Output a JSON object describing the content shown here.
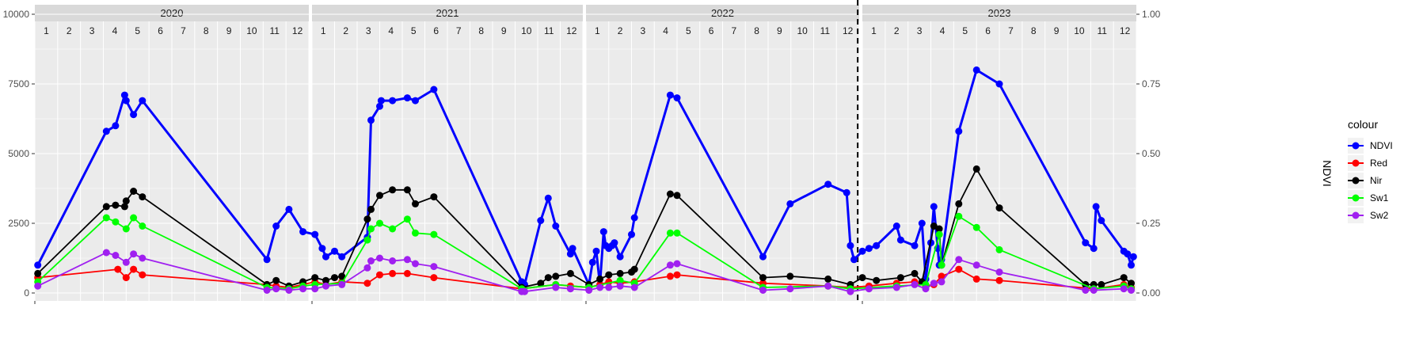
{
  "chart_data": {
    "type": "line",
    "title": "",
    "xlabel": "",
    "ylabel": "",
    "ylabel_right": "NDVI",
    "ylim": [
      0,
      10000
    ],
    "ylim_right": [
      0,
      1
    ],
    "y_ticks": [
      "0",
      "2500",
      "5000",
      "7500",
      "10000"
    ],
    "y_ticks_right": [
      "0.00",
      "0.25",
      "0.50",
      "0.75",
      "1.00"
    ],
    "x_range": [
      "2020-01-01",
      "2023-12-31"
    ],
    "grid": true,
    "legend": {
      "title": "colour",
      "position": "right"
    },
    "years": [
      "2020",
      "2021",
      "2022",
      "2023"
    ],
    "month_labels": [
      "1",
      "2",
      "3",
      "4",
      "5",
      "6",
      "7",
      "8",
      "9",
      "10",
      "11",
      "12"
    ],
    "vline_date": "2022-12-30",
    "series": [
      {
        "name": "NDVI",
        "color": "#0000ff",
        "x": [
          "2020-01-05",
          "2020-04-05",
          "2020-04-17",
          "2020-04-29",
          "2020-05-01",
          "2020-05-11",
          "2020-05-23",
          "2020-11-06",
          "2020-11-18",
          "2020-12-05",
          "2020-12-24",
          "2021-01-05",
          "2021-01-15",
          "2021-01-20",
          "2021-02-01",
          "2021-02-10",
          "2021-03-15",
          "2021-03-20",
          "2021-04-01",
          "2021-04-03",
          "2021-04-18",
          "2021-05-08",
          "2021-05-19",
          "2021-06-13",
          "2021-10-10",
          "2021-10-14",
          "2021-11-05",
          "2021-11-15",
          "2021-11-25",
          "2021-12-15",
          "2021-12-18",
          "2022-01-05",
          "2022-01-10",
          "2022-01-15",
          "2022-01-20",
          "2022-01-25",
          "2022-01-28",
          "2022-02-01",
          "2022-02-05",
          "2022-02-08",
          "2022-02-15",
          "2022-03-01",
          "2022-03-05",
          "2022-04-22",
          "2022-05-01",
          "2022-08-25",
          "2022-09-30",
          "2022-11-20",
          "2022-12-15",
          "2022-12-20",
          "2022-12-25",
          "2023-01-01",
          "2023-01-10",
          "2023-01-20",
          "2023-02-15",
          "2023-02-20",
          "2023-03-10",
          "2023-03-20",
          "2023-03-25",
          "2023-04-01",
          "2023-04-05",
          "2023-04-10",
          "2023-04-12",
          "2023-04-15",
          "2023-05-08",
          "2023-06-01",
          "2023-07-01",
          "2023-10-25",
          "2023-11-05",
          "2023-11-08",
          "2023-11-15",
          "2023-12-15",
          "2023-12-20",
          "2023-12-25",
          "2023-12-28"
        ],
        "values": [
          0.1,
          0.58,
          0.6,
          0.71,
          0.69,
          0.64,
          0.69,
          0.12,
          0.24,
          0.3,
          0.22,
          0.21,
          0.16,
          0.13,
          0.15,
          0.13,
          0.2,
          0.62,
          0.67,
          0.69,
          0.69,
          0.7,
          0.69,
          0.73,
          0.04,
          0.03,
          0.26,
          0.34,
          0.24,
          0.14,
          0.16,
          0.03,
          0.11,
          0.15,
          0.03,
          0.22,
          0.17,
          0.16,
          0.17,
          0.18,
          0.13,
          0.21,
          0.27,
          0.71,
          0.7,
          0.13,
          0.32,
          0.39,
          0.36,
          0.17,
          0.12,
          0.15,
          0.16,
          0.17,
          0.24,
          0.19,
          0.17,
          0.25,
          0.05,
          0.18,
          0.31,
          0.16,
          0.1,
          0.12,
          0.58,
          0.8,
          0.75,
          0.18,
          0.16,
          0.31,
          0.26,
          0.15,
          0.14,
          0.1,
          0.13
        ]
      },
      {
        "name": "Red",
        "color": "#ff0000",
        "x": [
          "2020-01-05",
          "2020-04-20",
          "2020-05-01",
          "2020-05-11",
          "2020-05-23",
          "2020-11-06",
          "2020-11-18",
          "2020-12-05",
          "2020-12-24",
          "2021-01-05",
          "2021-01-20",
          "2021-02-10",
          "2021-03-15",
          "2021-04-01",
          "2021-04-18",
          "2021-05-08",
          "2021-06-13",
          "2021-10-10",
          "2021-11-25",
          "2021-12-15",
          "2022-01-05",
          "2022-01-20",
          "2022-02-01",
          "2022-02-15",
          "2022-03-05",
          "2022-04-22",
          "2022-05-01",
          "2022-08-25",
          "2022-11-20",
          "2022-12-20",
          "2023-01-10",
          "2023-02-15",
          "2023-03-10",
          "2023-03-25",
          "2023-04-05",
          "2023-04-15",
          "2023-05-08",
          "2023-06-01",
          "2023-07-01",
          "2023-11-05",
          "2023-12-15",
          "2023-12-25"
        ],
        "values": [
          550,
          850,
          550,
          850,
          650,
          300,
          250,
          200,
          300,
          400,
          300,
          400,
          350,
          650,
          700,
          700,
          550,
          150,
          300,
          250,
          200,
          300,
          400,
          350,
          400,
          600,
          650,
          350,
          250,
          200,
          250,
          350,
          400,
          250,
          300,
          600,
          850,
          500,
          450,
          150,
          300,
          200
        ]
      },
      {
        "name": "Nir",
        "color": "#000000",
        "x": [
          "2020-01-05",
          "2020-04-05",
          "2020-04-17",
          "2020-04-29",
          "2020-05-01",
          "2020-05-11",
          "2020-05-23",
          "2020-11-06",
          "2020-11-18",
          "2020-12-05",
          "2020-12-24",
          "2021-01-05",
          "2021-01-20",
          "2021-02-01",
          "2021-02-10",
          "2021-03-15",
          "2021-03-20",
          "2021-04-01",
          "2021-04-18",
          "2021-05-08",
          "2021-05-19",
          "2021-06-13",
          "2021-10-10",
          "2021-11-05",
          "2021-11-15",
          "2021-11-25",
          "2021-12-15",
          "2022-01-05",
          "2022-01-20",
          "2022-02-01",
          "2022-02-15",
          "2022-03-01",
          "2022-03-05",
          "2022-04-22",
          "2022-05-01",
          "2022-08-25",
          "2022-09-30",
          "2022-11-20",
          "2022-12-20",
          "2023-01-01",
          "2023-01-20",
          "2023-02-20",
          "2023-03-10",
          "2023-03-20",
          "2023-04-05",
          "2023-04-12",
          "2023-04-15",
          "2023-05-08",
          "2023-06-01",
          "2023-07-01",
          "2023-10-25",
          "2023-11-05",
          "2023-11-15",
          "2023-12-15",
          "2023-12-25"
        ],
        "values": [
          700,
          3100,
          3150,
          3100,
          3300,
          3650,
          3450,
          300,
          450,
          250,
          400,
          550,
          450,
          550,
          600,
          2650,
          3000,
          3500,
          3700,
          3700,
          3200,
          3450,
          200,
          350,
          550,
          600,
          700,
          300,
          500,
          650,
          700,
          750,
          850,
          3550,
          3500,
          550,
          600,
          500,
          300,
          550,
          450,
          550,
          700,
          400,
          2400,
          2300,
          1000,
          3200,
          4450,
          3050,
          300,
          300,
          300,
          550,
          350
        ]
      },
      {
        "name": "Sw1",
        "color": "#00ff00",
        "x": [
          "2020-01-05",
          "2020-04-05",
          "2020-04-17",
          "2020-05-01",
          "2020-05-11",
          "2020-05-23",
          "2020-11-06",
          "2020-12-05",
          "2020-12-24",
          "2021-01-05",
          "2021-02-10",
          "2021-03-15",
          "2021-03-20",
          "2021-04-01",
          "2021-04-18",
          "2021-05-08",
          "2021-05-19",
          "2021-06-13",
          "2021-10-10",
          "2021-11-25",
          "2022-01-05",
          "2022-02-15",
          "2022-03-05",
          "2022-04-22",
          "2022-05-01",
          "2022-08-25",
          "2022-11-20",
          "2022-12-20",
          "2023-02-15",
          "2023-03-25",
          "2023-04-12",
          "2023-04-15",
          "2023-05-08",
          "2023-06-01",
          "2023-07-01",
          "2023-11-05",
          "2023-12-15",
          "2023-12-25"
        ],
        "values": [
          400,
          2700,
          2550,
          2300,
          2700,
          2400,
          200,
          150,
          250,
          300,
          350,
          1900,
          2300,
          2500,
          2300,
          2650,
          2150,
          2100,
          150,
          300,
          200,
          450,
          350,
          2150,
          2150,
          200,
          250,
          150,
          250,
          300,
          2100,
          1000,
          2750,
          2350,
          1550,
          150,
          250,
          150
        ]
      },
      {
        "name": "Sw2",
        "color": "#a020f0",
        "x": [
          "2020-01-05",
          "2020-04-05",
          "2020-04-17",
          "2020-05-01",
          "2020-05-11",
          "2020-05-23",
          "2020-11-06",
          "2020-11-18",
          "2020-12-05",
          "2020-12-24",
          "2021-01-05",
          "2021-01-20",
          "2021-02-10",
          "2021-03-15",
          "2021-03-20",
          "2021-04-01",
          "2021-04-18",
          "2021-05-08",
          "2021-05-19",
          "2021-06-13",
          "2021-10-10",
          "2021-10-14",
          "2021-11-25",
          "2021-12-15",
          "2022-01-05",
          "2022-01-20",
          "2022-02-01",
          "2022-02-15",
          "2022-03-05",
          "2022-04-22",
          "2022-05-01",
          "2022-08-25",
          "2022-09-30",
          "2022-11-20",
          "2022-12-20",
          "2023-01-10",
          "2023-02-15",
          "2023-03-10",
          "2023-03-25",
          "2023-04-05",
          "2023-04-15",
          "2023-05-08",
          "2023-06-01",
          "2023-07-01",
          "2023-10-25",
          "2023-11-05",
          "2023-12-15",
          "2023-12-25"
        ],
        "values": [
          250,
          1450,
          1350,
          1100,
          1400,
          1250,
          100,
          150,
          100,
          150,
          150,
          250,
          300,
          900,
          1150,
          1250,
          1150,
          1200,
          1050,
          950,
          50,
          50,
          200,
          150,
          100,
          200,
          200,
          250,
          200,
          1000,
          1050,
          100,
          150,
          250,
          50,
          150,
          200,
          300,
          150,
          350,
          400,
          1200,
          1000,
          750,
          100,
          100,
          150,
          100
        ]
      }
    ]
  }
}
